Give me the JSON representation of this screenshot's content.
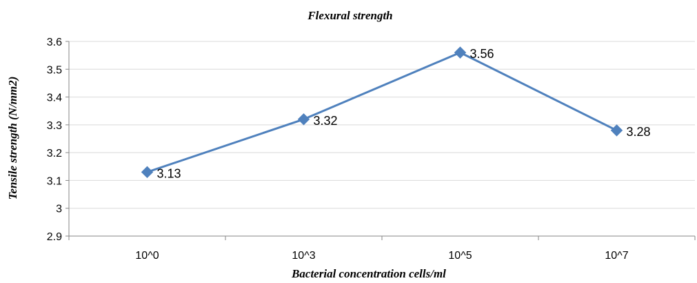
{
  "chart_data": {
    "type": "line",
    "title": "Flexural strength",
    "xlabel": "Bacterial concentration  cells/ml",
    "ylabel": "Tensile strength (N/mm2)",
    "categories": [
      "10^0",
      "10^3",
      "10^5",
      "10^7"
    ],
    "series": [
      {
        "values": [
          3.13,
          3.32,
          3.56,
          3.28
        ],
        "color": "#4f81bd"
      }
    ],
    "data_labels": [
      "3.13",
      "3.32",
      "3.56",
      "3.28"
    ],
    "ylim": [
      2.9,
      3.6
    ],
    "yticks": [
      "2.9",
      "3",
      "3.1",
      "3.2",
      "3.3",
      "3.4",
      "3.5",
      "3.6"
    ],
    "ytick_values": [
      2.9,
      3.0,
      3.1,
      3.2,
      3.3,
      3.4,
      3.5,
      3.6
    ],
    "grid": true,
    "legend": "none",
    "marker": "diamond"
  }
}
